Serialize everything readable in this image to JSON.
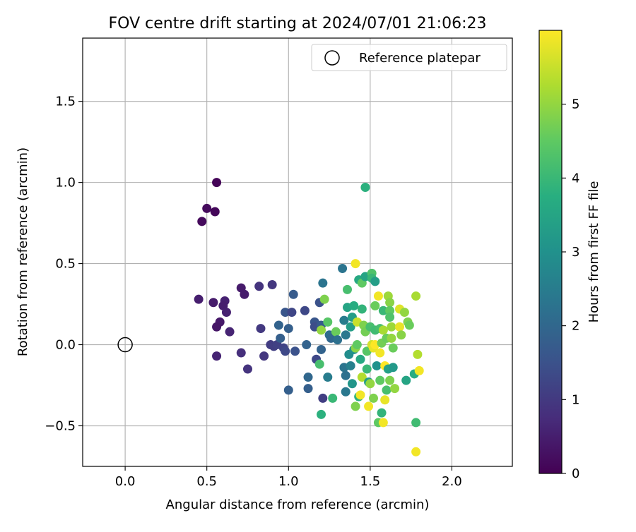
{
  "chart_data": {
    "type": "scatter",
    "title": "FOV centre drift starting at 2024/07/01 21:06:23",
    "xlabel": "Angular distance from reference (arcmin)",
    "ylabel": "Rotation from reference (arcmin)",
    "xlim": [
      -0.26,
      2.37
    ],
    "ylim": [
      -0.75,
      1.89
    ],
    "xticks": [
      0.0,
      0.5,
      1.0,
      1.5,
      2.0
    ],
    "xtick_labels": [
      "0.0",
      "0.5",
      "1.0",
      "1.5",
      "2.0"
    ],
    "yticks": [
      -0.5,
      0.0,
      0.5,
      1.0,
      1.5
    ],
    "ytick_labels": [
      "−0.5",
      "0.0",
      "0.5",
      "1.0",
      "1.5"
    ],
    "grid": true,
    "legend": {
      "position": "top-right",
      "entries": [
        "Reference platepar"
      ]
    },
    "reference_point": {
      "x": 0.0,
      "y": 0.0,
      "label": "Reference platepar"
    },
    "colorbar": {
      "label": "Hours from first FF file",
      "range": [
        0,
        6.0
      ],
      "ticks": [
        0,
        1,
        2,
        3,
        4,
        5
      ],
      "tick_labels": [
        "0",
        "1",
        "2",
        "3",
        "4",
        "5"
      ],
      "colormap": "viridis"
    },
    "series": [
      {
        "points": [
          {
            "x": 0.56,
            "y": 1.0,
            "c": 0.05
          },
          {
            "x": 0.5,
            "y": 0.84,
            "c": 0.15
          },
          {
            "x": 0.55,
            "y": 0.82,
            "c": 0.1
          },
          {
            "x": 0.47,
            "y": 0.76,
            "c": 0.15
          },
          {
            "x": 0.45,
            "y": 0.28,
            "c": 0.5
          },
          {
            "x": 0.54,
            "y": 0.26,
            "c": 0.45
          },
          {
            "x": 0.61,
            "y": 0.27,
            "c": 0.55
          },
          {
            "x": 0.6,
            "y": 0.24,
            "c": 0.5
          },
          {
            "x": 0.62,
            "y": 0.2,
            "c": 0.55
          },
          {
            "x": 0.58,
            "y": 0.14,
            "c": 0.4
          },
          {
            "x": 0.56,
            "y": 0.11,
            "c": 0.35
          },
          {
            "x": 0.64,
            "y": 0.08,
            "c": 0.6
          },
          {
            "x": 0.56,
            "y": -0.07,
            "c": 0.6
          },
          {
            "x": 0.71,
            "y": 0.35,
            "c": 0.45
          },
          {
            "x": 0.73,
            "y": 0.31,
            "c": 0.45
          },
          {
            "x": 0.71,
            "y": -0.05,
            "c": 0.8
          },
          {
            "x": 0.75,
            "y": -0.15,
            "c": 0.9
          },
          {
            "x": 0.82,
            "y": 0.36,
            "c": 0.9
          },
          {
            "x": 0.9,
            "y": 0.37,
            "c": 0.95
          },
          {
            "x": 0.83,
            "y": 0.1,
            "c": 1.0
          },
          {
            "x": 0.85,
            "y": -0.07,
            "c": 0.95
          },
          {
            "x": 0.89,
            "y": 0.0,
            "c": 1.05
          },
          {
            "x": 0.91,
            "y": -0.01,
            "c": 1.1
          },
          {
            "x": 0.93,
            "y": 0.0,
            "c": 1.15
          },
          {
            "x": 0.94,
            "y": 0.12,
            "c": 1.9
          },
          {
            "x": 0.95,
            "y": 0.04,
            "c": 1.8
          },
          {
            "x": 0.97,
            "y": -0.02,
            "c": 1.2
          },
          {
            "x": 0.98,
            "y": -0.04,
            "c": 1.3
          },
          {
            "x": 0.98,
            "y": 0.2,
            "c": 1.6
          },
          {
            "x": 1.0,
            "y": 0.1,
            "c": 1.8
          },
          {
            "x": 1.02,
            "y": 0.2,
            "c": 1.25
          },
          {
            "x": 1.03,
            "y": 0.31,
            "c": 1.7
          },
          {
            "x": 1.04,
            "y": -0.04,
            "c": 1.5
          },
          {
            "x": 1.1,
            "y": 0.21,
            "c": 1.3
          },
          {
            "x": 1.0,
            "y": -0.28,
            "c": 1.8
          },
          {
            "x": 1.11,
            "y": 0.0,
            "c": 1.9
          },
          {
            "x": 1.12,
            "y": -0.2,
            "c": 2.0
          },
          {
            "x": 1.12,
            "y": -0.27,
            "c": 1.8
          },
          {
            "x": 1.16,
            "y": 0.14,
            "c": 1.6
          },
          {
            "x": 1.16,
            "y": 0.11,
            "c": 1.4
          },
          {
            "x": 1.17,
            "y": -0.09,
            "c": 1.3
          },
          {
            "x": 1.19,
            "y": 0.26,
            "c": 1.5
          },
          {
            "x": 1.2,
            "y": 0.12,
            "c": 1.7
          },
          {
            "x": 1.2,
            "y": -0.03,
            "c": 1.9
          },
          {
            "x": 1.21,
            "y": -0.33,
            "c": 1.1
          },
          {
            "x": 1.21,
            "y": 0.38,
            "c": 2.3
          },
          {
            "x": 1.22,
            "y": 0.28,
            "c": 4.8
          },
          {
            "x": 1.2,
            "y": 0.09,
            "c": 5.0
          },
          {
            "x": 1.19,
            "y": -0.12,
            "c": 4.2
          },
          {
            "x": 1.2,
            "y": -0.43,
            "c": 3.8
          },
          {
            "x": 1.24,
            "y": 0.14,
            "c": 4.4
          },
          {
            "x": 1.25,
            "y": 0.06,
            "c": 2.1
          },
          {
            "x": 1.26,
            "y": 0.04,
            "c": 2.0
          },
          {
            "x": 1.27,
            "y": -0.33,
            "c": 4.0
          },
          {
            "x": 1.24,
            "y": -0.2,
            "c": 2.5
          },
          {
            "x": 1.29,
            "y": 0.08,
            "c": 4.6
          },
          {
            "x": 1.3,
            "y": 0.03,
            "c": 2.2
          },
          {
            "x": 1.33,
            "y": 0.47,
            "c": 2.3
          },
          {
            "x": 1.34,
            "y": 0.15,
            "c": 2.5
          },
          {
            "x": 1.34,
            "y": -0.14,
            "c": 2.3
          },
          {
            "x": 1.35,
            "y": 0.06,
            "c": 2.4
          },
          {
            "x": 1.35,
            "y": -0.19,
            "c": 2.2
          },
          {
            "x": 1.35,
            "y": -0.29,
            "c": 2.4
          },
          {
            "x": 1.36,
            "y": 0.34,
            "c": 4.2
          },
          {
            "x": 1.36,
            "y": 0.23,
            "c": 3.5
          },
          {
            "x": 1.37,
            "y": -0.06,
            "c": 2.9
          },
          {
            "x": 1.38,
            "y": 0.11,
            "c": 3.3
          },
          {
            "x": 1.38,
            "y": -0.13,
            "c": 2.6
          },
          {
            "x": 1.39,
            "y": 0.17,
            "c": 3.3
          },
          {
            "x": 1.39,
            "y": -0.24,
            "c": 3.1
          },
          {
            "x": 1.4,
            "y": 0.24,
            "c": 3.7
          },
          {
            "x": 1.4,
            "y": -0.03,
            "c": 3.0
          },
          {
            "x": 1.41,
            "y": -0.38,
            "c": 4.8
          },
          {
            "x": 1.41,
            "y": 0.5,
            "c": 5.9
          },
          {
            "x": 1.41,
            "y": -0.02,
            "c": 4.9
          },
          {
            "x": 1.42,
            "y": 0.14,
            "c": 5.5
          },
          {
            "x": 1.42,
            "y": 0.0,
            "c": 4.5
          },
          {
            "x": 1.43,
            "y": -0.32,
            "c": 3.8
          },
          {
            "x": 1.43,
            "y": 0.4,
            "c": 3.6
          },
          {
            "x": 1.44,
            "y": -0.31,
            "c": 5.9
          },
          {
            "x": 1.44,
            "y": -0.09,
            "c": 3.6
          },
          {
            "x": 1.45,
            "y": 0.38,
            "c": 4.5
          },
          {
            "x": 1.45,
            "y": 0.22,
            "c": 3.9
          },
          {
            "x": 1.45,
            "y": -0.2,
            "c": 5.3
          },
          {
            "x": 1.46,
            "y": 0.12,
            "c": 4.8
          },
          {
            "x": 1.47,
            "y": 0.97,
            "c": 3.8
          },
          {
            "x": 1.47,
            "y": 0.08,
            "c": 4.7
          },
          {
            "x": 1.47,
            "y": 0.42,
            "c": 3.5
          },
          {
            "x": 1.48,
            "y": -0.04,
            "c": 4.4
          },
          {
            "x": 1.48,
            "y": -0.15,
            "c": 4.0
          },
          {
            "x": 1.49,
            "y": -0.23,
            "c": 3.3
          },
          {
            "x": 1.49,
            "y": -0.38,
            "c": 5.9
          },
          {
            "x": 1.5,
            "y": 0.11,
            "c": 4.2
          },
          {
            "x": 1.5,
            "y": -0.24,
            "c": 5.0
          },
          {
            "x": 1.51,
            "y": 0.44,
            "c": 4.3
          },
          {
            "x": 1.51,
            "y": 0.41,
            "c": 4.0
          },
          {
            "x": 1.51,
            "y": 0.0,
            "c": 5.6
          },
          {
            "x": 1.52,
            "y": -0.02,
            "c": 5.8
          },
          {
            "x": 1.52,
            "y": -0.33,
            "c": 4.8
          },
          {
            "x": 1.53,
            "y": 0.39,
            "c": 3.3
          },
          {
            "x": 1.53,
            "y": 0.24,
            "c": 4.6
          },
          {
            "x": 1.53,
            "y": 0.09,
            "c": 4.1
          },
          {
            "x": 1.53,
            "y": 0.0,
            "c": 6.0
          },
          {
            "x": 1.54,
            "y": -0.13,
            "c": 3.0
          },
          {
            "x": 1.55,
            "y": 0.3,
            "c": 5.9
          },
          {
            "x": 1.55,
            "y": -0.48,
            "c": 4.5
          },
          {
            "x": 1.56,
            "y": 0.1,
            "c": 4.2
          },
          {
            "x": 1.56,
            "y": -0.05,
            "c": 5.9
          },
          {
            "x": 1.56,
            "y": -0.22,
            "c": 4.5
          },
          {
            "x": 1.57,
            "y": -0.42,
            "c": 3.9
          },
          {
            "x": 1.57,
            "y": 0.01,
            "c": 4.7
          },
          {
            "x": 1.58,
            "y": -0.48,
            "c": 5.9
          },
          {
            "x": 1.58,
            "y": 0.09,
            "c": 5.2
          },
          {
            "x": 1.58,
            "y": 0.21,
            "c": 4.0
          },
          {
            "x": 1.59,
            "y": -0.13,
            "c": 6.0
          },
          {
            "x": 1.59,
            "y": -0.34,
            "c": 5.8
          },
          {
            "x": 1.6,
            "y": -0.28,
            "c": 4.2
          },
          {
            "x": 1.6,
            "y": 0.04,
            "c": 4.6
          },
          {
            "x": 1.61,
            "y": 0.3,
            "c": 5.1
          },
          {
            "x": 1.61,
            "y": -0.15,
            "c": 3.4
          },
          {
            "x": 1.62,
            "y": -0.22,
            "c": 4.8
          },
          {
            "x": 1.62,
            "y": 0.26,
            "c": 4.9
          },
          {
            "x": 1.62,
            "y": 0.21,
            "c": 4.5
          },
          {
            "x": 1.62,
            "y": 0.17,
            "c": 4.3
          },
          {
            "x": 1.63,
            "y": 0.11,
            "c": 5.1
          },
          {
            "x": 1.63,
            "y": 0.04,
            "c": 5.0
          },
          {
            "x": 1.64,
            "y": -0.02,
            "c": 4.6
          },
          {
            "x": 1.64,
            "y": -0.14,
            "c": 3.2
          },
          {
            "x": 1.65,
            "y": -0.27,
            "c": 5.0
          },
          {
            "x": 1.68,
            "y": 0.22,
            "c": 5.7
          },
          {
            "x": 1.68,
            "y": 0.11,
            "c": 5.8
          },
          {
            "x": 1.69,
            "y": 0.06,
            "c": 4.9
          },
          {
            "x": 1.71,
            "y": 0.2,
            "c": 5.0
          },
          {
            "x": 1.72,
            "y": -0.22,
            "c": 3.5
          },
          {
            "x": 1.73,
            "y": 0.14,
            "c": 4.8
          },
          {
            "x": 1.74,
            "y": 0.12,
            "c": 4.6
          },
          {
            "x": 1.77,
            "y": -0.18,
            "c": 3.7
          },
          {
            "x": 1.78,
            "y": -0.66,
            "c": 5.9
          },
          {
            "x": 1.78,
            "y": -0.48,
            "c": 4.1
          },
          {
            "x": 1.78,
            "y": 0.3,
            "c": 5.2
          },
          {
            "x": 1.79,
            "y": -0.06,
            "c": 5.3
          },
          {
            "x": 1.8,
            "y": -0.16,
            "c": 5.9
          }
        ]
      }
    ]
  }
}
